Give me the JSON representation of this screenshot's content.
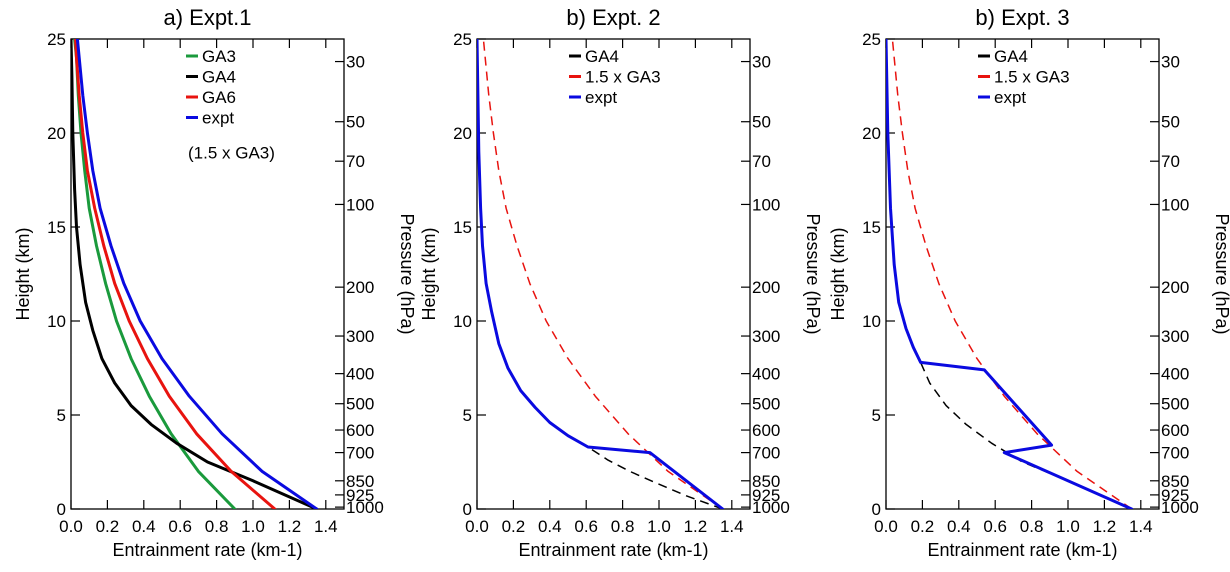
{
  "chart_data": [
    {
      "type": "line",
      "title": "a) Expt.1",
      "xlabel": "Entrainment rate (km-1)",
      "ylabel": "Height (km)",
      "y2label": "Pressure (hPa)",
      "xlim": [
        0.0,
        1.5
      ],
      "ylim": [
        0,
        25
      ],
      "xticks": [
        "0.0",
        "0.2",
        "0.4",
        "0.6",
        "0.8",
        "1.0",
        "1.2",
        "1.4"
      ],
      "yticks": [
        "0",
        "5",
        "10",
        "15",
        "20",
        "25"
      ],
      "pressure_ticks": [
        {
          "label": "30",
          "height": 23.8
        },
        {
          "label": "50",
          "height": 20.6
        },
        {
          "label": "70",
          "height": 18.5
        },
        {
          "label": "100",
          "height": 16.2
        },
        {
          "label": "200",
          "height": 11.8
        },
        {
          "label": "300",
          "height": 9.2
        },
        {
          "label": "400",
          "height": 7.2
        },
        {
          "label": "500",
          "height": 5.6
        },
        {
          "label": "600",
          "height": 4.2
        },
        {
          "label": "700",
          "height": 3.0
        },
        {
          "label": "850",
          "height": 1.5
        },
        {
          "label": "925",
          "height": 0.75
        },
        {
          "label": "1000",
          "height": 0.1
        }
      ],
      "legend": [
        "GA3",
        "GA4",
        "GA6",
        "expt",
        "(1.5 x GA3)"
      ],
      "series": [
        {
          "name": "GA3",
          "color": "#1a9a3c",
          "style": "solid",
          "width": 3,
          "x": [
            0.9,
            0.7,
            0.55,
            0.43,
            0.33,
            0.25,
            0.19,
            0.14,
            0.1,
            0.075,
            0.055,
            0.04,
            0.03,
            0.02
          ],
          "y": [
            0,
            2,
            4,
            6,
            8,
            10,
            12,
            14,
            16,
            18,
            20,
            22,
            24,
            25
          ]
        },
        {
          "name": "GA4",
          "color": "#000000",
          "style": "solid",
          "width": 3,
          "x": [
            1.35,
            1.0,
            0.75,
            0.58,
            0.44,
            0.33,
            0.24,
            0.17,
            0.12,
            0.08,
            0.05,
            0.03,
            0.02,
            0.01,
            0.005,
            0.0
          ],
          "y": [
            0,
            1.5,
            2.5,
            3.5,
            4.5,
            5.5,
            6.7,
            8.0,
            9.5,
            11,
            13,
            15,
            17,
            20,
            23,
            25
          ]
        },
        {
          "name": "GA6",
          "color": "#e8130f",
          "style": "solid",
          "width": 3,
          "x": [
            1.12,
            0.88,
            0.69,
            0.54,
            0.42,
            0.32,
            0.24,
            0.18,
            0.13,
            0.09,
            0.065,
            0.045,
            0.03,
            0.025
          ],
          "y": [
            0,
            2,
            4,
            6,
            8,
            10,
            12,
            14,
            16,
            18,
            20,
            22,
            24,
            25
          ]
        },
        {
          "name": "expt",
          "color": "#0a0ae0",
          "style": "solid",
          "width": 3,
          "x": [
            1.35,
            1.05,
            0.83,
            0.65,
            0.5,
            0.38,
            0.29,
            0.22,
            0.16,
            0.12,
            0.09,
            0.065,
            0.045,
            0.035
          ],
          "y": [
            0,
            2,
            4,
            6,
            8,
            10,
            12,
            14,
            16,
            18,
            20,
            22,
            24,
            25
          ]
        }
      ]
    },
    {
      "type": "line",
      "title": "b) Expt. 2",
      "xlabel": "Entrainment rate (km-1)",
      "ylabel": "Height (km)",
      "y2label": "Pressure (hPa)",
      "xlim": [
        0.0,
        1.5
      ],
      "ylim": [
        0,
        25
      ],
      "xticks": [
        "0.0",
        "0.2",
        "0.4",
        "0.6",
        "0.8",
        "1.0",
        "1.2",
        "1.4"
      ],
      "yticks": [
        "0",
        "5",
        "10",
        "15",
        "20",
        "25"
      ],
      "legend": [
        "GA4",
        "1.5 x GA3",
        "expt"
      ],
      "series": [
        {
          "name": "GA4",
          "color": "#000000",
          "style": "dashed",
          "width": 1.5,
          "x": [
            1.35,
            1.15,
            0.98,
            0.84,
            0.72,
            0.61
          ],
          "y": [
            0,
            0.7,
            1.4,
            2.0,
            2.6,
            3.3
          ]
        },
        {
          "name": "1.5 x GA3",
          "color": "#e8130f",
          "style": "dashed",
          "width": 1.5,
          "x": [
            1.35,
            1.05,
            0.83,
            0.65,
            0.5,
            0.38,
            0.29,
            0.22,
            0.16,
            0.12,
            0.09,
            0.065,
            0.045,
            0.035
          ],
          "y": [
            0,
            2,
            4,
            6,
            8,
            10,
            12,
            14,
            16,
            18,
            20,
            22,
            24,
            25
          ]
        },
        {
          "name": "expt",
          "color": "#0a0ae0",
          "style": "solid",
          "width": 3,
          "x": [
            1.35,
            0.95,
            0.61,
            0.5,
            0.4,
            0.32,
            0.24,
            0.17,
            0.12,
            0.08,
            0.05,
            0.03,
            0.02,
            0.01,
            0.005,
            0.0
          ],
          "y": [
            0,
            3.0,
            3.3,
            3.9,
            4.6,
            5.4,
            6.3,
            7.5,
            8.8,
            10.5,
            12,
            14,
            16,
            19,
            22,
            25
          ]
        }
      ]
    },
    {
      "type": "line",
      "title": "b) Expt. 3",
      "xlabel": "Entrainment rate (km-1)",
      "ylabel": "Height (km)",
      "y2label": "Pressure (hPa)",
      "xlim": [
        0.0,
        1.5
      ],
      "ylim": [
        0,
        25
      ],
      "xticks": [
        "0.0",
        "0.2",
        "0.4",
        "0.6",
        "0.8",
        "1.0",
        "1.2",
        "1.4"
      ],
      "yticks": [
        "0",
        "5",
        "10",
        "15",
        "20",
        "25"
      ],
      "legend": [
        "GA4",
        "1.5 x GA3",
        "expt"
      ],
      "series": [
        {
          "name": "GA4",
          "color": "#000000",
          "style": "dashed",
          "width": 1.5,
          "x": [
            1.35,
            1.0,
            0.75,
            0.58,
            0.44,
            0.33,
            0.24,
            0.19
          ],
          "y": [
            0,
            1.5,
            2.5,
            3.5,
            4.5,
            5.5,
            6.7,
            7.8
          ]
        },
        {
          "name": "1.5 x GA3",
          "color": "#e8130f",
          "style": "dashed",
          "width": 1.5,
          "x": [
            1.35,
            1.05,
            0.83,
            0.65,
            0.5,
            0.38,
            0.29,
            0.22,
            0.16,
            0.12,
            0.09,
            0.065,
            0.045,
            0.035
          ],
          "y": [
            0,
            2,
            4,
            6,
            8,
            10,
            12,
            14,
            16,
            18,
            20,
            22,
            24,
            25
          ]
        },
        {
          "name": "expt",
          "color": "#0a0ae0",
          "style": "solid",
          "width": 3,
          "x": [
            1.35,
            0.65,
            0.91,
            0.54,
            0.19,
            0.15,
            0.11,
            0.07,
            0.045,
            0.025,
            0.01,
            0.0
          ],
          "y": [
            0,
            3.0,
            3.4,
            7.4,
            7.8,
            8.6,
            9.6,
            11,
            13,
            16,
            20,
            25
          ]
        }
      ]
    }
  ]
}
